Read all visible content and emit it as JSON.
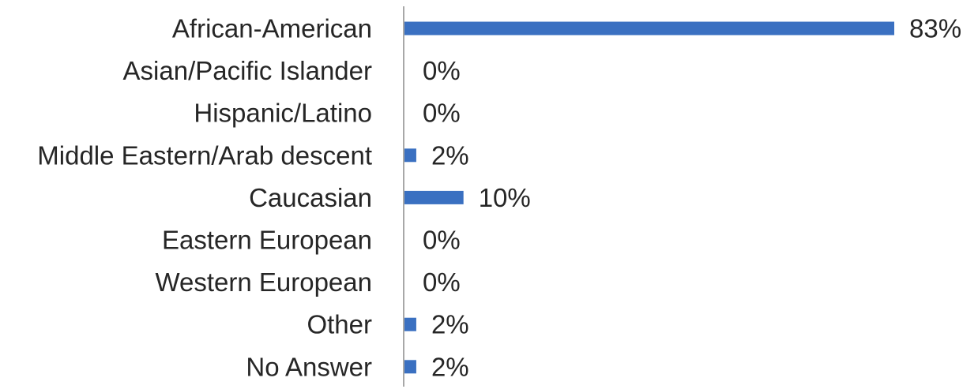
{
  "chart_data": {
    "type": "bar",
    "orientation": "horizontal",
    "title": "",
    "xlabel": "",
    "ylabel": "",
    "categories": [
      "African-American",
      "Asian/Pacific Islander",
      "Hispanic/Latino",
      "Middle Eastern/Arab descent",
      "Caucasian",
      "Eastern European",
      "Western European",
      "Other",
      "No Answer"
    ],
    "values": [
      83,
      0,
      0,
      2,
      10,
      0,
      0,
      2,
      2
    ],
    "value_labels": [
      "83%",
      "0%",
      "0%",
      "2%",
      "10%",
      "0%",
      "0%",
      "2%",
      "2%"
    ],
    "value_unit": "%",
    "xlim": [
      0,
      100
    ],
    "grid": false,
    "legend": "none",
    "bar_color": "#3A70C1"
  }
}
